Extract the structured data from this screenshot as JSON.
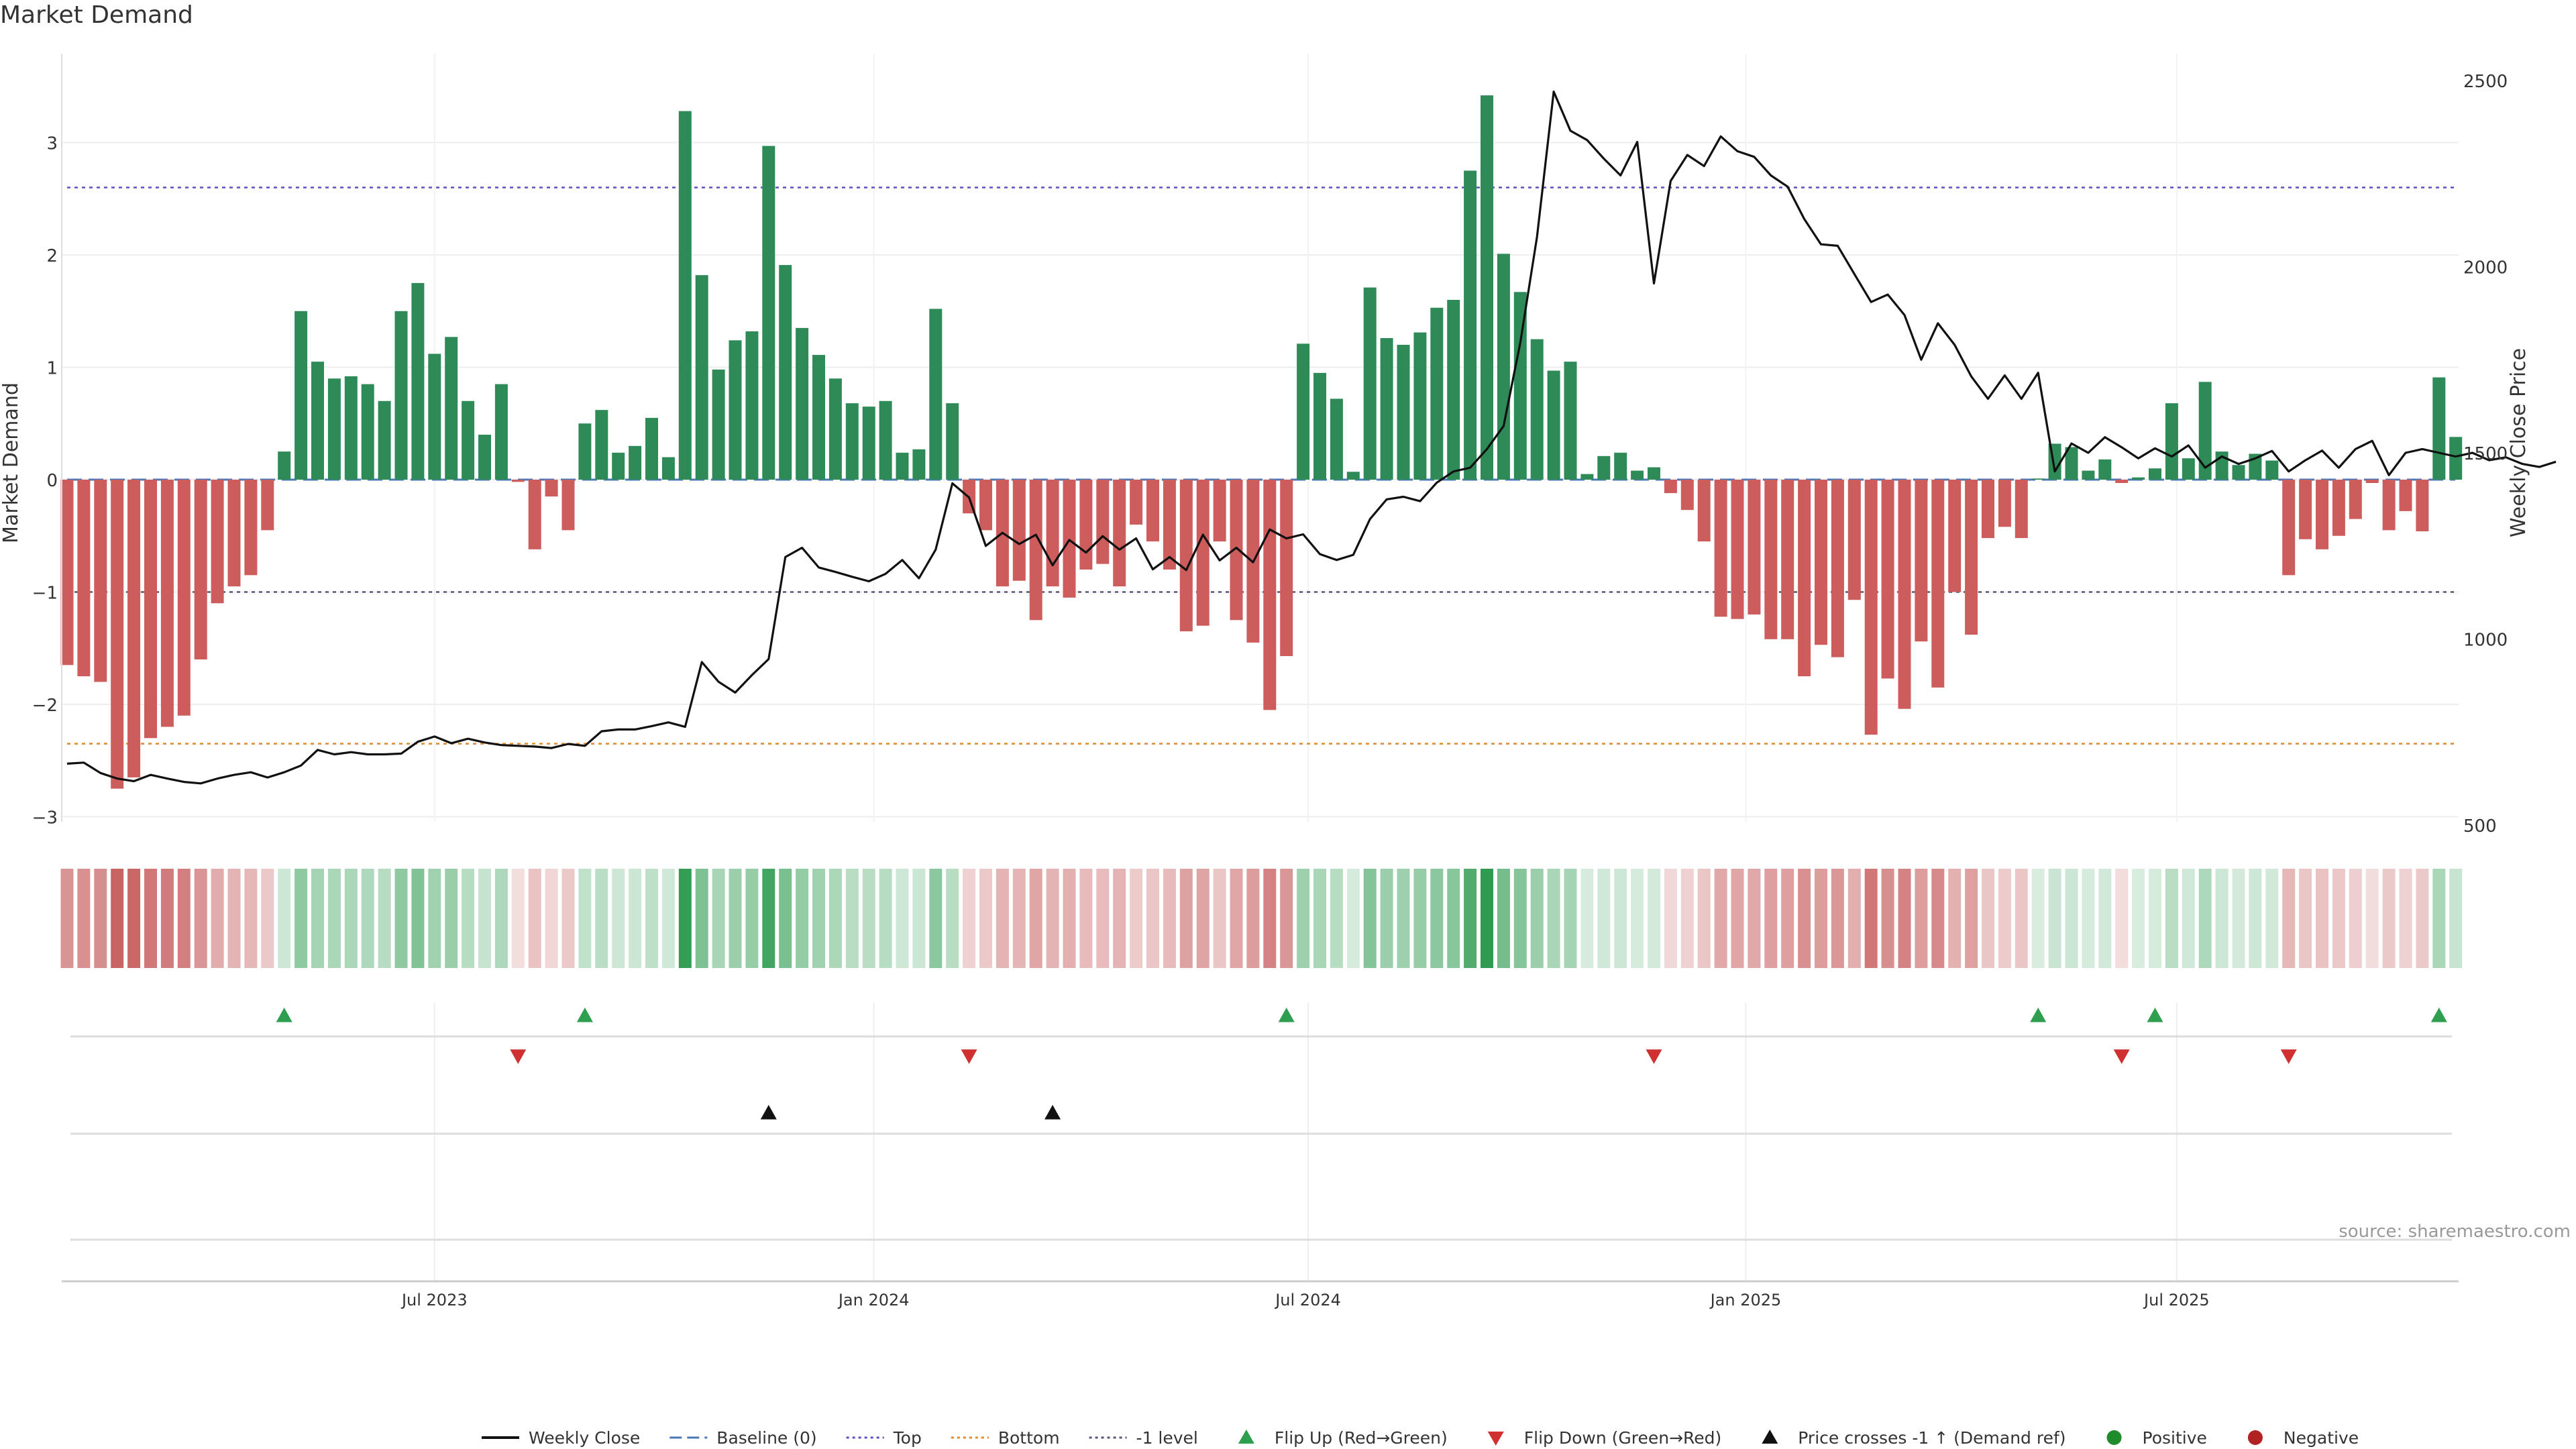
{
  "chart_data": {
    "type": "bar",
    "title": "Market Demand",
    "ylabel_left": "Market Demand",
    "ylabel_right": "Weekly Close Price",
    "source": "source: sharemaestro.com",
    "ylim_left": [
      -3.3,
      3.8
    ],
    "ylim_right": [
      500,
      2500
    ],
    "yticks_left": [
      "3",
      "2",
      "1",
      "0",
      "−1",
      "−2",
      "−3"
    ],
    "yticks_left_values": [
      3,
      2,
      1,
      0,
      -1,
      -2,
      -3
    ],
    "yticks_right": [
      "2500",
      "2000",
      "1500",
      "1000",
      "500"
    ],
    "yticks_right_values": [
      2500,
      2000,
      1500,
      1000,
      500
    ],
    "xticks": [
      "Jul 2023",
      "Jan 2024",
      "Jul 2024",
      "Jan 2025",
      "Jul 2025"
    ],
    "xticks_index": [
      22,
      48.3,
      74.3,
      100.5,
      126.3
    ],
    "reference_lines": {
      "top": 2.6,
      "bottom": -2.35,
      "minus_one": -1,
      "baseline": 0
    },
    "demand": [
      -1.65,
      -1.75,
      -1.8,
      -2.75,
      -2.65,
      -2.3,
      -2.2,
      -2.1,
      -1.6,
      -1.1,
      -0.95,
      -0.85,
      -0.45,
      0.25,
      1.5,
      1.05,
      0.9,
      0.92,
      0.85,
      0.7,
      1.5,
      1.75,
      1.12,
      1.27,
      0.7,
      0.4,
      0.85,
      -0.02,
      -0.62,
      -0.15,
      -0.45,
      0.5,
      0.62,
      0.24,
      0.3,
      0.55,
      0.2,
      3.28,
      1.82,
      0.98,
      1.24,
      1.32,
      2.97,
      1.91,
      1.35,
      1.11,
      0.9,
      0.68,
      0.65,
      0.7,
      0.24,
      0.27,
      1.52,
      0.68,
      -0.3,
      -0.45,
      -0.95,
      -0.9,
      -1.25,
      -0.95,
      -1.05,
      -0.8,
      -0.75,
      -0.95,
      -0.4,
      -0.55,
      -0.8,
      -1.35,
      -1.3,
      -0.55,
      -1.25,
      -1.45,
      -2.05,
      -1.57,
      1.21,
      0.95,
      0.72,
      0.07,
      1.71,
      1.26,
      1.2,
      1.31,
      1.53,
      1.6,
      2.75,
      3.42,
      2.01,
      1.67,
      1.25,
      0.97,
      1.05,
      0.05,
      0.21,
      0.24,
      0.08,
      0.11,
      -0.12,
      -0.27,
      -0.55,
      -1.22,
      -1.24,
      -1.2,
      -1.42,
      -1.42,
      -1.75,
      -1.47,
      -1.58,
      -1.07,
      -2.27,
      -1.77,
      -2.04,
      -1.44,
      -1.85,
      -1.0,
      -1.38,
      -0.52,
      -0.42,
      -0.52,
      0.01,
      0.32,
      0.29,
      0.08,
      0.18,
      -0.03,
      0.02,
      0.1,
      0.68,
      0.19,
      0.87,
      0.25,
      0.13,
      0.23,
      0.17,
      -0.85,
      -0.53,
      -0.62,
      -0.5,
      -0.35,
      -0.03,
      -0.45,
      -0.28,
      -0.46,
      0.91,
      0.38
    ],
    "price": [
      665,
      668,
      640,
      625,
      618,
      635,
      625,
      616,
      612,
      625,
      635,
      642,
      628,
      642,
      660,
      702,
      690,
      696,
      690,
      690,
      692,
      724,
      738,
      720,
      732,
      722,
      715,
      713,
      711,
      707,
      718,
      713,
      752,
      757,
      757,
      766,
      776,
      764,
      938,
      885,
      856,
      903,
      946,
      1220,
      1245,
      1192,
      1180,
      1167,
      1155,
      1175,
      1212,
      1163,
      1240,
      1418,
      1380,
      1250,
      1285,
      1255,
      1280,
      1198,
      1266,
      1232,
      1276,
      1240,
      1270,
      1187,
      1220,
      1185,
      1280,
      1211,
      1245,
      1206,
      1294,
      1270,
      1281,
      1228,
      1212,
      1226,
      1322,
      1375,
      1382,
      1370,
      1420,
      1450,
      1460,
      1510,
      1572,
      1796,
      2080,
      2470,
      2365,
      2340,
      2290,
      2245,
      2335,
      1955,
      2230,
      2300,
      2270,
      2350,
      2310,
      2295,
      2245,
      2215,
      2128,
      2060,
      2056,
      1980,
      1905,
      1925,
      1870,
      1750,
      1848,
      1790,
      1705,
      1645,
      1708,
      1645,
      1715,
      1450,
      1525,
      1500,
      1542,
      1515,
      1485,
      1512,
      1490,
      1520,
      1460,
      1490,
      1470,
      1485,
      1505,
      1450,
      1480,
      1506,
      1460,
      1510,
      1532,
      1440,
      1500,
      1510,
      1500,
      1490,
      1500,
      1480,
      1488,
      1470,
      1462,
      1476
    ],
    "signals": {
      "flip_up_index": [
        13,
        31,
        73,
        118,
        125,
        142
      ],
      "flip_down_index": [
        27,
        54,
        95,
        123,
        133
      ],
      "price_cross_index": [
        42,
        59
      ]
    },
    "legend": [
      {
        "label": "Weekly Close",
        "symbol": "line",
        "color": "#111111"
      },
      {
        "label": "Baseline (0)",
        "symbol": "dash",
        "color": "#4a78b8"
      },
      {
        "label": "Top",
        "symbol": "dot",
        "color": "#5a4fc8"
      },
      {
        "label": "Bottom",
        "symbol": "dot",
        "color": "#e08a2a"
      },
      {
        "label": "-1 level",
        "symbol": "dot",
        "color": "#555577"
      },
      {
        "label": "Flip Up (Red→Green)",
        "symbol": "triangle-up",
        "color": "#2e9e4f"
      },
      {
        "label": "Flip Down (Green→Red)",
        "symbol": "triangle-down",
        "color": "#d03030"
      },
      {
        "label": "Price crosses -1 ↑ (Demand ref)",
        "symbol": "triangle-up",
        "color": "#111111"
      },
      {
        "label": "Positive",
        "symbol": "circle",
        "color": "#1f8b2a"
      },
      {
        "label": "Negative",
        "symbol": "circle",
        "color": "#b22222"
      }
    ],
    "colors": {
      "positive_bar": "#2e8b57",
      "negative_bar": "#cd5c5c",
      "price_line": "#111111",
      "grid": "#eeeeee"
    }
  }
}
